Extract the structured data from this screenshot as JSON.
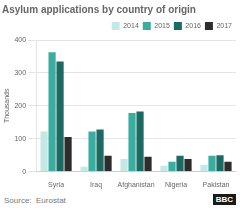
{
  "chart_data": {
    "type": "bar",
    "title": "Asylum applications by country of origin",
    "ylabel": "Thousands",
    "annotations": [
      "Source:  Eurostat",
      "BBC"
    ],
    "categories": [
      "Syria",
      "Iraq",
      "Afghanistan",
      "Nigeria",
      "Pakistan"
    ],
    "series": [
      {
        "name": "2014",
        "color": "#c5e8e4",
        "values": [
          122,
          15,
          38,
          18,
          20
        ]
      },
      {
        "name": "2015",
        "color": "#3aada0",
        "values": [
          363,
          122,
          178,
          30,
          48
        ]
      },
      {
        "name": "2016",
        "color": "#1b6b63",
        "values": [
          335,
          128,
          183,
          48,
          50
        ]
      },
      {
        "name": "2017",
        "color": "#2d2d2d",
        "values": [
          105,
          48,
          45,
          38,
          30
        ]
      }
    ],
    "ylim": [
      0,
      400
    ],
    "yticks": [
      0,
      100,
      200,
      300,
      400
    ],
    "grid": true,
    "legend": "upper right"
  }
}
